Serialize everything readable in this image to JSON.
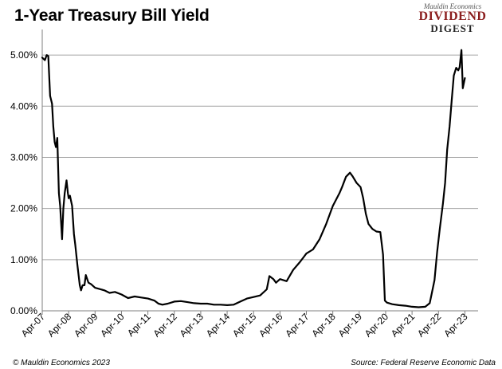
{
  "header": {
    "title": "1-Year Treasury Bill Yield",
    "logo": {
      "line1": "Mauldin Economics",
      "line2": "DIVIDEND",
      "line3": "DIGEST"
    }
  },
  "footer": {
    "left": "© Mauldin Economics 2023",
    "right": "Source: Federal Reserve Economic Data"
  },
  "chart_data": {
    "type": "line",
    "title": "1-Year Treasury Bill Yield",
    "xlabel": "",
    "ylabel": "",
    "ylim": [
      0,
      5.5
    ],
    "xlim": [
      2007.25,
      2023.75
    ],
    "grid": "horizontal",
    "y_ticks": [
      0,
      1,
      2,
      3,
      4,
      5
    ],
    "y_tick_labels": [
      "0.00%",
      "1.00%",
      "2.00%",
      "3.00%",
      "4.00%",
      "5.00%"
    ],
    "x_ticks": [
      2007.25,
      2008.25,
      2009.25,
      2010.25,
      2011.25,
      2012.25,
      2013.25,
      2014.25,
      2015.25,
      2016.25,
      2017.25,
      2018.25,
      2019.25,
      2020.25,
      2021.25,
      2022.25,
      2023.25
    ],
    "x_tick_labels": [
      "Apr-07",
      "Apr-08",
      "Apr-09",
      "Apr-10",
      "Apr-11",
      "Apr-12",
      "Apr-13",
      "Apr-14",
      "Apr-15",
      "Apr-16",
      "Apr-17",
      "Apr-18",
      "Apr-19",
      "Apr-20",
      "Apr-21",
      "Apr-22",
      "Apr-23"
    ],
    "series": [
      {
        "color": "#000000",
        "x": [
          2007.25,
          2007.35,
          2007.42,
          2007.48,
          2007.55,
          2007.62,
          2007.67,
          2007.72,
          2007.77,
          2007.82,
          2007.88,
          2007.93,
          2008.0,
          2008.05,
          2008.1,
          2008.17,
          2008.22,
          2008.25,
          2008.3,
          2008.38,
          2008.45,
          2008.5,
          2008.58,
          2008.67,
          2008.72,
          2008.78,
          2008.85,
          2008.9,
          2009.0,
          2009.1,
          2009.25,
          2009.4,
          2009.6,
          2009.8,
          2010.0,
          2010.25,
          2010.5,
          2010.75,
          2011.0,
          2011.25,
          2011.5,
          2011.65,
          2011.8,
          2012.0,
          2012.25,
          2012.5,
          2012.75,
          2013.0,
          2013.25,
          2013.5,
          2013.75,
          2014.0,
          2014.25,
          2014.5,
          2014.75,
          2015.0,
          2015.25,
          2015.5,
          2015.75,
          2015.85,
          2016.0,
          2016.1,
          2016.25,
          2016.5,
          2016.75,
          2017.0,
          2017.25,
          2017.5,
          2017.75,
          2018.0,
          2018.25,
          2018.5,
          2018.6,
          2018.75,
          2018.9,
          2019.0,
          2019.15,
          2019.3,
          2019.4,
          2019.5,
          2019.6,
          2019.75,
          2019.9,
          2020.05,
          2020.15,
          2020.22,
          2020.3,
          2020.5,
          2020.75,
          2021.0,
          2021.25,
          2021.5,
          2021.75,
          2021.92,
          2022.0,
          2022.1,
          2022.2,
          2022.3,
          2022.42,
          2022.5,
          2022.58,
          2022.67,
          2022.75,
          2022.83,
          2022.92,
          2023.0,
          2023.05,
          2023.12,
          2023.17,
          2023.25
        ],
        "y": [
          4.95,
          4.9,
          5.0,
          4.98,
          4.2,
          4.05,
          3.6,
          3.3,
          3.2,
          3.38,
          2.3,
          2.05,
          1.4,
          2.0,
          2.3,
          2.55,
          2.3,
          2.2,
          2.25,
          2.05,
          1.5,
          1.3,
          0.9,
          0.5,
          0.4,
          0.5,
          0.5,
          0.7,
          0.55,
          0.52,
          0.45,
          0.43,
          0.4,
          0.35,
          0.37,
          0.32,
          0.25,
          0.28,
          0.26,
          0.24,
          0.2,
          0.14,
          0.12,
          0.14,
          0.18,
          0.19,
          0.17,
          0.15,
          0.14,
          0.14,
          0.12,
          0.12,
          0.11,
          0.12,
          0.18,
          0.24,
          0.27,
          0.3,
          0.42,
          0.68,
          0.62,
          0.55,
          0.62,
          0.58,
          0.8,
          0.95,
          1.12,
          1.2,
          1.4,
          1.7,
          2.05,
          2.3,
          2.42,
          2.62,
          2.7,
          2.63,
          2.5,
          2.42,
          2.2,
          1.9,
          1.7,
          1.6,
          1.55,
          1.54,
          1.1,
          0.2,
          0.16,
          0.13,
          0.11,
          0.1,
          0.08,
          0.07,
          0.08,
          0.15,
          0.35,
          0.6,
          1.15,
          1.6,
          2.1,
          2.5,
          3.15,
          3.6,
          4.1,
          4.6,
          4.75,
          4.7,
          4.76,
          5.1,
          4.35,
          4.55
        ]
      }
    ]
  }
}
